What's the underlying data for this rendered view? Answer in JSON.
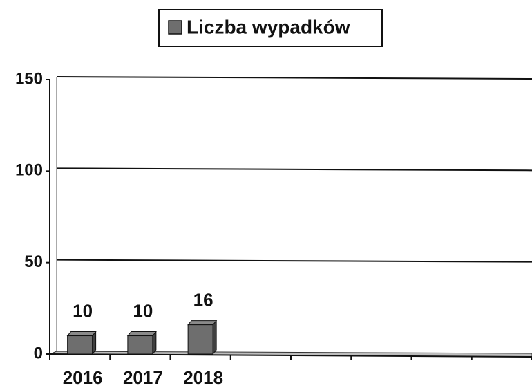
{
  "chart_data": {
    "type": "bar",
    "categories": [
      "2016",
      "2017",
      "2018",
      null,
      null,
      null,
      null,
      null
    ],
    "series": [
      {
        "name": "Liczba wypadków",
        "color": "#6e6e6e",
        "values": [
          10,
          10,
          16,
          null,
          null,
          null,
          null,
          null
        ]
      }
    ],
    "ylim": [
      0,
      150
    ],
    "yticks": [
      0,
      50,
      100,
      150
    ],
    "grid": true,
    "legend": "top"
  }
}
